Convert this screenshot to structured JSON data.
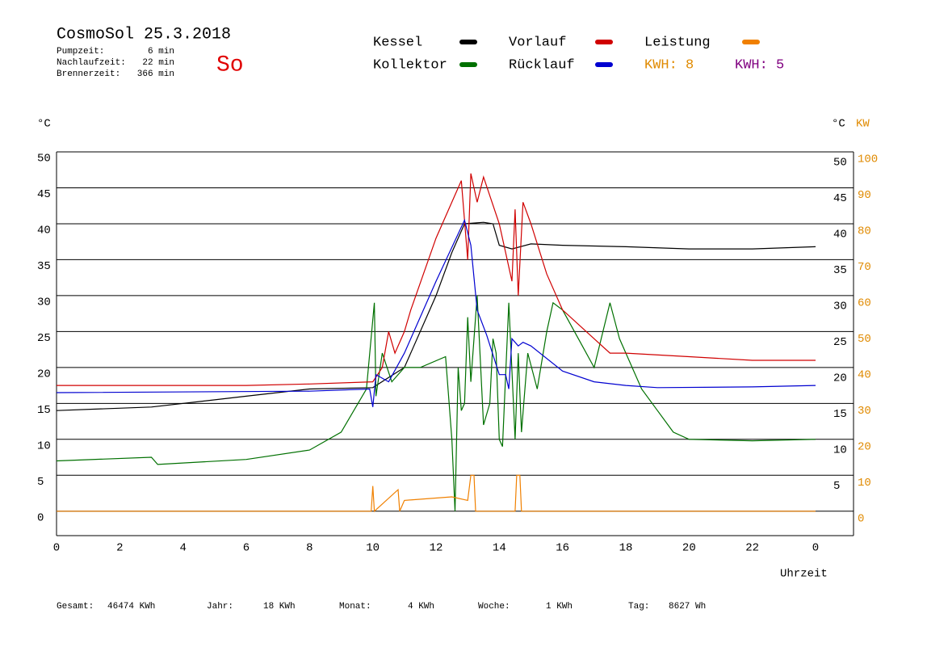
{
  "header": {
    "title": "CosmoSol 25.3.2018",
    "day": "So",
    "stats": [
      [
        "Pumpzeit:",
        "6 min"
      ],
      [
        "Nachlaufzeit:",
        "22 min"
      ],
      [
        "Brennerzeit:",
        "366 min"
      ]
    ]
  },
  "footer": [
    [
      "Gesamt:",
      "46474 KWh"
    ],
    [
      "Jahr:",
      "18 KWh"
    ],
    [
      "Monat:",
      "4 KWh"
    ],
    [
      "Woche:",
      "1 KWh"
    ],
    [
      "Tag:",
      "8627 Wh"
    ]
  ],
  "chart_data": {
    "type": "line",
    "y_unit_left": "°C",
    "y_unit_right": "°C",
    "y2_unit": "KW",
    "xlabel": "Uhrzeit",
    "kwh_labels": [
      {
        "text": "KWH: 8",
        "color": "#e08a00"
      },
      {
        "text": "KWH: 5",
        "color": "#800080"
      }
    ],
    "xlim": [
      0,
      25.2
    ],
    "xticks": [
      0,
      2,
      4,
      6,
      8,
      10,
      12,
      14,
      16,
      18,
      20,
      22,
      {
        "value": 24,
        "label": "0"
      }
    ],
    "ylim": [
      -3.4,
      50
    ],
    "yticks": [
      0,
      5,
      10,
      15,
      20,
      25,
      30,
      35,
      40,
      45,
      50
    ],
    "y_right_ticks": [
      5,
      10,
      15,
      20,
      25,
      30,
      35,
      40,
      45,
      50
    ],
    "y2lim": [
      -6.8,
      100
    ],
    "y2ticks": [
      0,
      10,
      20,
      30,
      40,
      50,
      60,
      70,
      80,
      90,
      100
    ],
    "grid": true,
    "series": [
      {
        "name": "Kessel",
        "color": "#000000",
        "x": [
          0,
          3,
          6,
          8,
          10,
          11,
          12,
          12.5,
          12.9,
          13.5,
          13.8,
          14,
          14.4,
          15,
          16,
          18,
          20,
          22,
          24
        ],
        "values": [
          14,
          14.5,
          16,
          17,
          17.2,
          20,
          30,
          36,
          40,
          40.2,
          40,
          37,
          36.5,
          37.2,
          37,
          36.8,
          36.5,
          36.5,
          36.8
        ]
      },
      {
        "name": "Kollektor",
        "color": "#007000",
        "x": [
          0,
          3,
          3.2,
          6,
          8,
          9,
          9.8,
          10.05,
          10.1,
          10.3,
          10.6,
          11,
          11.5,
          12.3,
          12.5,
          12.6,
          12.7,
          12.8,
          12.9,
          13,
          13.1,
          13.3,
          13.5,
          13.7,
          13.8,
          13.9,
          14,
          14.1,
          14.3,
          14.5,
          14.6,
          14.7,
          14.9,
          15.2,
          15.5,
          15.7,
          16,
          16.5,
          17,
          17.5,
          17.8,
          18.5,
          19,
          19.5,
          20,
          22,
          24
        ],
        "values": [
          7,
          7.5,
          6.5,
          7.2,
          8.5,
          11,
          17,
          29,
          16,
          22,
          18,
          20,
          20,
          21.5,
          10,
          0,
          20,
          14,
          15,
          27,
          18,
          30,
          12,
          15,
          24,
          22,
          10,
          9,
          29,
          10,
          22,
          11,
          22,
          17,
          25,
          29,
          28,
          24,
          20,
          29,
          24,
          17,
          14,
          11,
          10,
          9.8,
          10
        ]
      },
      {
        "name": "Vorlauf",
        "color": "#d00000",
        "x": [
          0,
          6,
          8,
          10,
          10.3,
          10.5,
          10.7,
          11,
          11.2,
          12,
          12.8,
          13,
          13.1,
          13.3,
          13.5,
          14,
          14.4,
          14.5,
          14.6,
          14.75,
          15,
          15.5,
          16,
          17,
          17.5,
          18,
          20,
          22,
          24
        ],
        "values": [
          17.5,
          17.5,
          17.7,
          18,
          20,
          25,
          22,
          25,
          28,
          38,
          46,
          35,
          47,
          43,
          46.5,
          40,
          32,
          42,
          30,
          43,
          40,
          33,
          28,
          24,
          22,
          22,
          21.5,
          21,
          21
        ]
      },
      {
        "name": "Rücklauf",
        "color": "#0000d0",
        "x": [
          0,
          8,
          9.9,
          10,
          10.1,
          10.5,
          11,
          12,
          12.9,
          13.1,
          13.3,
          13.6,
          14,
          14.2,
          14.3,
          14.4,
          14.6,
          14.75,
          15,
          16,
          17,
          18,
          19,
          22,
          24
        ],
        "values": [
          16.5,
          16.7,
          17,
          14.5,
          19,
          18,
          22,
          32,
          40.5,
          37,
          28,
          24.5,
          19,
          19,
          17,
          24,
          23,
          23.5,
          23,
          19.5,
          18,
          17.5,
          17.2,
          17.3,
          17.5
        ]
      },
      {
        "name": "Leistung",
        "color": "#f08000",
        "axis": "y2",
        "x": [
          0,
          9.95,
          10,
          10.05,
          10.8,
          10.85,
          11,
          12.5,
          13,
          13.1,
          13.2,
          13.25,
          14.5,
          14.55,
          14.65,
          14.7,
          24
        ],
        "values": [
          0,
          0,
          7,
          0,
          6,
          0,
          3,
          4,
          3,
          10,
          10,
          0,
          0,
          10,
          10,
          0,
          0
        ]
      }
    ]
  }
}
